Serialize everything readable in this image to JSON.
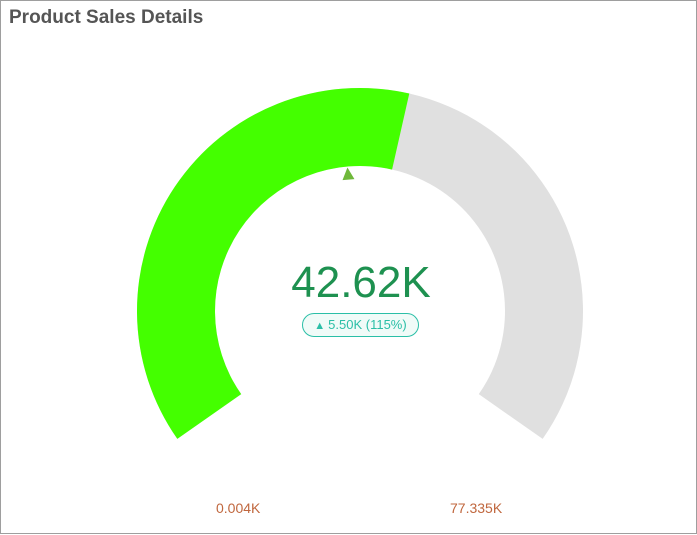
{
  "title": "Product Sales Details",
  "chart_data": {
    "type": "gauge",
    "title": "Product Sales Details",
    "min": 0.004,
    "max": 77.335,
    "value": 42.62,
    "target": 37.12,
    "unit": "K",
    "value_label": "42.62K",
    "delta_label": "5.50K (115%)",
    "min_label": "0.004K",
    "max_label": "77.335K"
  },
  "colors": {
    "fill": "#44ff00",
    "track": "#e0e0e0",
    "marker": "#6fb83a",
    "value": "#1e9150",
    "delta": "#2bbfa7",
    "range_labels": "#c0673e"
  }
}
